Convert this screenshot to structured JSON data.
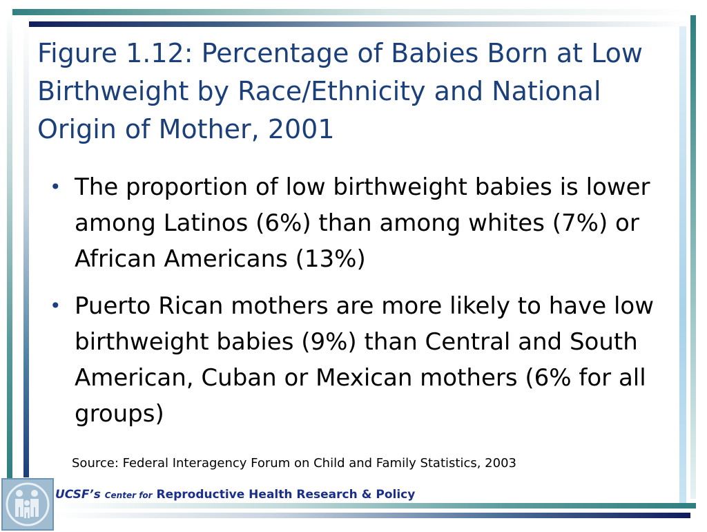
{
  "slide": {
    "title": "Figure 1.12: Percentage of Babies Born at Low Birthweight by Race/Ethnicity and National Origin of Mother, 2001",
    "bullets": [
      "The proportion of low birthweight babies is lower among Latinos (6%) than among whites (7%) or African Americans (13%)",
      "Puerto Rican mothers are more likely to have low birthweight babies (9%) than Central and South American, Cuban or Mexican mothers (6% for all groups)"
    ],
    "bullet_glyph": "•",
    "source": "Source: Federal Interagency Forum on Child and Family Statistics, 2003"
  },
  "footer": {
    "ucsf": "UCSF’s",
    "center_for": "Center for",
    "org": "Reproductive Health Research & Policy",
    "logo_icon": "family-figures-logo-icon"
  },
  "colors": {
    "title": "#1a3f7a",
    "footer_text": "#1a2f8a",
    "teal_bar": "#2f7f80",
    "navy_bar": "#101c5c"
  }
}
